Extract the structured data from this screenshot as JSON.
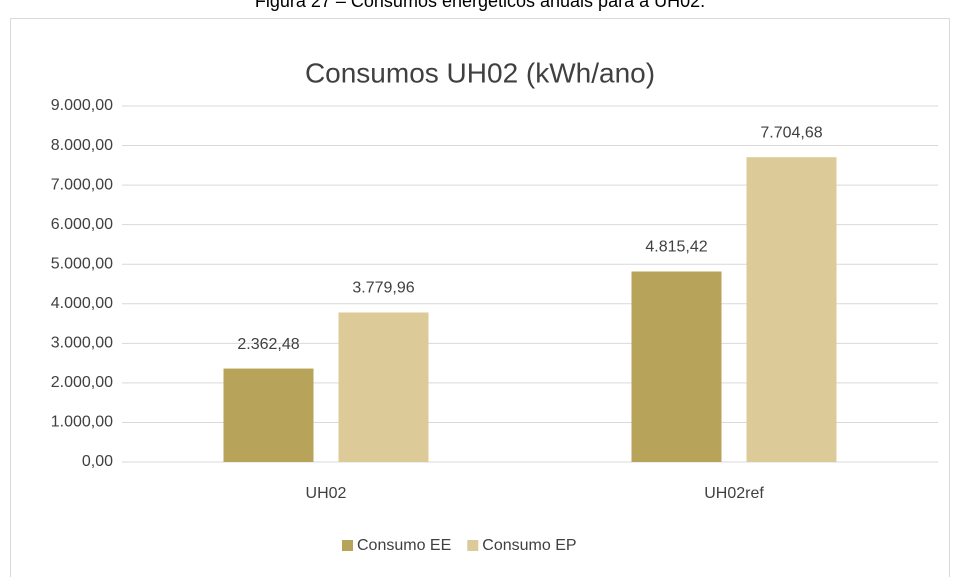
{
  "caption": "Figura 27 – Consumos energéticos anuais para a UH02.",
  "chart_data": {
    "type": "bar",
    "title": "Consumos UH02 (kWh/ano)",
    "categories": [
      "UH02",
      "UH02ref"
    ],
    "series": [
      {
        "name": "Consumo EE",
        "color": "#b8a35a",
        "values": [
          2362.48,
          4815.42
        ],
        "value_labels": [
          "2.362,48",
          "4.815,42"
        ]
      },
      {
        "name": "Consumo EP",
        "color": "#dccb98",
        "values": [
          3779.96,
          7704.68
        ],
        "value_labels": [
          "3.779,96",
          "7.704,68"
        ]
      }
    ],
    "ylim": [
      0,
      9000
    ],
    "yticks": [
      {
        "value": 0,
        "label": "0,00"
      },
      {
        "value": 1000,
        "label": "1.000,00"
      },
      {
        "value": 2000,
        "label": "2.000,00"
      },
      {
        "value": 3000,
        "label": "3.000,00"
      },
      {
        "value": 4000,
        "label": "4.000,00"
      },
      {
        "value": 5000,
        "label": "5.000,00"
      },
      {
        "value": 6000,
        "label": "6.000,00"
      },
      {
        "value": 7000,
        "label": "7.000,00"
      },
      {
        "value": 8000,
        "label": "8.000,00"
      },
      {
        "value": 9000,
        "label": "9.000,00"
      }
    ],
    "grid": true,
    "legend": "bottom"
  }
}
